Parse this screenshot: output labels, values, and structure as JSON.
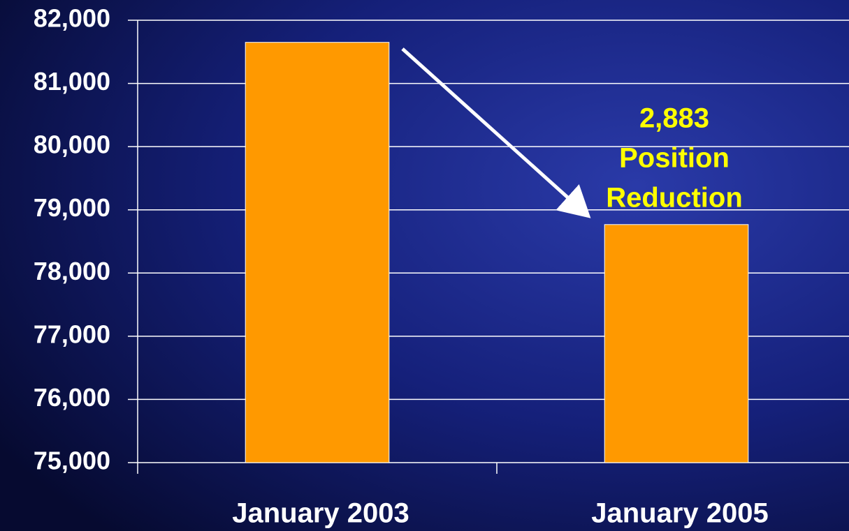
{
  "chart_data": {
    "type": "bar",
    "categories": [
      "January 2003",
      "January 2005"
    ],
    "values": [
      81650,
      78767
    ],
    "color": "#ff9900",
    "ylim": [
      75000,
      82000
    ],
    "yticks": [
      {
        "value": 75000,
        "label": "75,000"
      },
      {
        "value": 76000,
        "label": "76,000"
      },
      {
        "value": 77000,
        "label": "77,000"
      },
      {
        "value": 78000,
        "label": "78,000"
      },
      {
        "value": 79000,
        "label": "79,000"
      },
      {
        "value": 80000,
        "label": "80,000"
      },
      {
        "value": 81000,
        "label": "81,000"
      },
      {
        "value": 82000,
        "label": "82,000"
      }
    ],
    "grid": true,
    "annotation": [
      "2,883",
      "Position",
      "Reduction"
    ]
  }
}
